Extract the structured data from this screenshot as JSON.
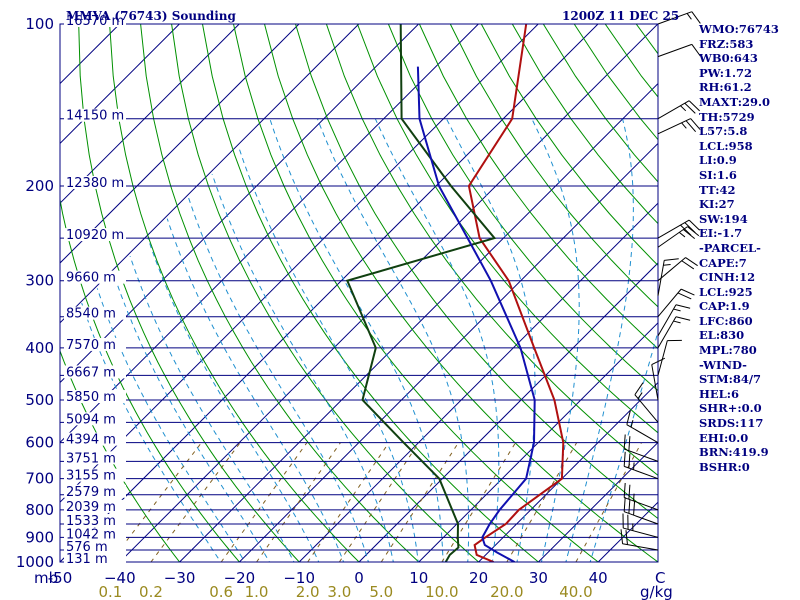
{
  "chart_data": {
    "type": "skew-t",
    "title": "MMVA (76743) Sounding",
    "time_label": "1200Z 11 DEC 25",
    "pressure_axis": {
      "unit": "mb",
      "levels": [
        100,
        200,
        300,
        400,
        500,
        600,
        700,
        800,
        900,
        1000
      ],
      "labels": [
        "100",
        "200",
        "300",
        "400",
        "500",
        "600",
        "700",
        "800",
        "900",
        "1000"
      ],
      "range": [
        100,
        1000
      ]
    },
    "temperature_axis": {
      "unit": "C",
      "values": [
        -50,
        -40,
        -30,
        -20,
        -10,
        0,
        10,
        20,
        30,
        40
      ],
      "labels": [
        "-50",
        "−40",
        "−30",
        "−20",
        "−10",
        "0",
        "10",
        "20",
        "30",
        "40"
      ],
      "unit_label": "C",
      "range": [
        -50,
        50
      ]
    },
    "mixing_ratio_axis": {
      "unit": "g/kg",
      "values": [
        0.1,
        0.2,
        0.6,
        1.0,
        2.0,
        3.0,
        5.0,
        10.0,
        20.0,
        40.0
      ],
      "labels": [
        "0.1",
        "0.2",
        "0.6",
        "1.0",
        "2.0",
        "3.0",
        "5.0",
        "10.0",
        "20.0",
        "40.0"
      ],
      "unit_label": "g/kg"
    },
    "height_labels": [
      {
        "p": 100,
        "label": "16570 m"
      },
      {
        "p": 150,
        "label": "14150 m"
      },
      {
        "p": 200,
        "label": "12380 m"
      },
      {
        "p": 250,
        "label": "10920 m"
      },
      {
        "p": 300,
        "label": "9660 m"
      },
      {
        "p": 350,
        "label": "8540 m"
      },
      {
        "p": 400,
        "label": "7570 m"
      },
      {
        "p": 450,
        "label": "6667 m"
      },
      {
        "p": 500,
        "label": "5850 m"
      },
      {
        "p": 550,
        "label": "5094 m"
      },
      {
        "p": 600,
        "label": "4394 m"
      },
      {
        "p": 650,
        "label": "3751 m"
      },
      {
        "p": 700,
        "label": "3155 m"
      },
      {
        "p": 750,
        "label": "2579 m"
      },
      {
        "p": 800,
        "label": "2039 m"
      },
      {
        "p": 850,
        "label": "1533 m"
      },
      {
        "p": 900,
        "label": "1042 m"
      },
      {
        "p": 950,
        "label": "576 m"
      },
      {
        "p": 1000,
        "label": "131 m"
      }
    ],
    "series": [
      {
        "name": "temperature",
        "color": "#b01010",
        "points": [
          [
            1000,
            22.5
          ],
          [
            970,
            18.5
          ],
          [
            930,
            16.5
          ],
          [
            900,
            17.0
          ],
          [
            850,
            18.2
          ],
          [
            800,
            18.0
          ],
          [
            700,
            20.0
          ],
          [
            600,
            14.2
          ],
          [
            500,
            5.6
          ],
          [
            400,
            -6.5
          ],
          [
            300,
            -22.0
          ],
          [
            250,
            -34.0
          ],
          [
            200,
            -44.5
          ],
          [
            150,
            -48.5
          ],
          [
            100,
            -62.0
          ]
        ]
      },
      {
        "name": "dewpoint",
        "color": "#104010",
        "points": [
          [
            1000,
            14.5
          ],
          [
            970,
            14.0
          ],
          [
            940,
            14.2
          ],
          [
            900,
            12.4
          ],
          [
            850,
            10.2
          ],
          [
            700,
            -0.5
          ],
          [
            600,
            -12.5
          ],
          [
            500,
            -26.5
          ],
          [
            400,
            -33.0
          ],
          [
            300,
            -49.0
          ],
          [
            250,
            -31.5
          ],
          [
            200,
            -47.5
          ],
          [
            150,
            -67.0
          ],
          [
            100,
            -83.0
          ]
        ]
      },
      {
        "name": "parcel",
        "color": "#1010b0",
        "points": [
          [
            1000,
            26.0
          ],
          [
            960,
            21.5
          ],
          [
            930,
            18.2
          ],
          [
            900,
            16.5
          ],
          [
            850,
            15.5
          ],
          [
            800,
            14.8
          ],
          [
            700,
            14.0
          ],
          [
            600,
            9.3
          ],
          [
            500,
            2.3
          ],
          [
            400,
            -8.8
          ],
          [
            300,
            -25.0
          ],
          [
            250,
            -36.0
          ],
          [
            200,
            -49.5
          ],
          [
            150,
            -64.0
          ],
          [
            120,
            -73.0
          ]
        ]
      }
    ],
    "wind_barbs": [
      {
        "p": 100,
        "dir": 70,
        "kt": 15
      },
      {
        "p": 115,
        "dir": 70,
        "kt": 10
      },
      {
        "p": 150,
        "dir": 60,
        "kt": 25
      },
      {
        "p": 160,
        "dir": 65,
        "kt": 25
      },
      {
        "p": 250,
        "dir": 60,
        "kt": 30
      },
      {
        "p": 260,
        "dir": 55,
        "kt": 25
      },
      {
        "p": 300,
        "dir": 50,
        "kt": 20
      },
      {
        "p": 320,
        "dir": 10,
        "kt": 15
      },
      {
        "p": 350,
        "dir": 40,
        "kt": 20
      },
      {
        "p": 380,
        "dir": 30,
        "kt": 15
      },
      {
        "p": 400,
        "dir": 30,
        "kt": 15
      },
      {
        "p": 450,
        "dir": 15,
        "kt": 10
      },
      {
        "p": 500,
        "dir": 350,
        "kt": 10
      },
      {
        "p": 550,
        "dir": 320,
        "kt": 15
      },
      {
        "p": 600,
        "dir": 300,
        "kt": 15
      },
      {
        "p": 650,
        "dir": 290,
        "kt": 20
      },
      {
        "p": 700,
        "dir": 290,
        "kt": 25
      },
      {
        "p": 800,
        "dir": 290,
        "kt": 25
      },
      {
        "p": 850,
        "dir": 290,
        "kt": 30
      },
      {
        "p": 900,
        "dir": 285,
        "kt": 25
      },
      {
        "p": 950,
        "dir": 280,
        "kt": 20
      }
    ],
    "indices": [
      "WMO:76743",
      "FRZ:583",
      "WB0:643",
      "PW:1.72",
      "RH:61.2",
      "MAXT:29.0",
      "TH:5729",
      "L57:5.8",
      "LCL:958",
      "LI:0.9",
      "SI:1.6",
      "TT:42",
      "KI:27",
      "SW:194",
      "EI:-1.7",
      "-PARCEL-",
      "CAPE:7",
      "CINH:12",
      "LCL:925",
      "CAP:1.9",
      "LFC:860",
      "EL:830",
      "MPL:780",
      "-WIND-",
      "STM:84/7",
      "HEL:6",
      "SHR+:0.0",
      "SRDS:117",
      "EHI:0.0",
      "BRN:419.9",
      "BSHR:0"
    ],
    "colors": {
      "frame": "#000080",
      "isobar": "#000080",
      "isotherm": "#000080",
      "dry_adiabat": "#009000",
      "moist_adiabat": "#2090d0",
      "mixing_ratio": "#806020"
    }
  }
}
